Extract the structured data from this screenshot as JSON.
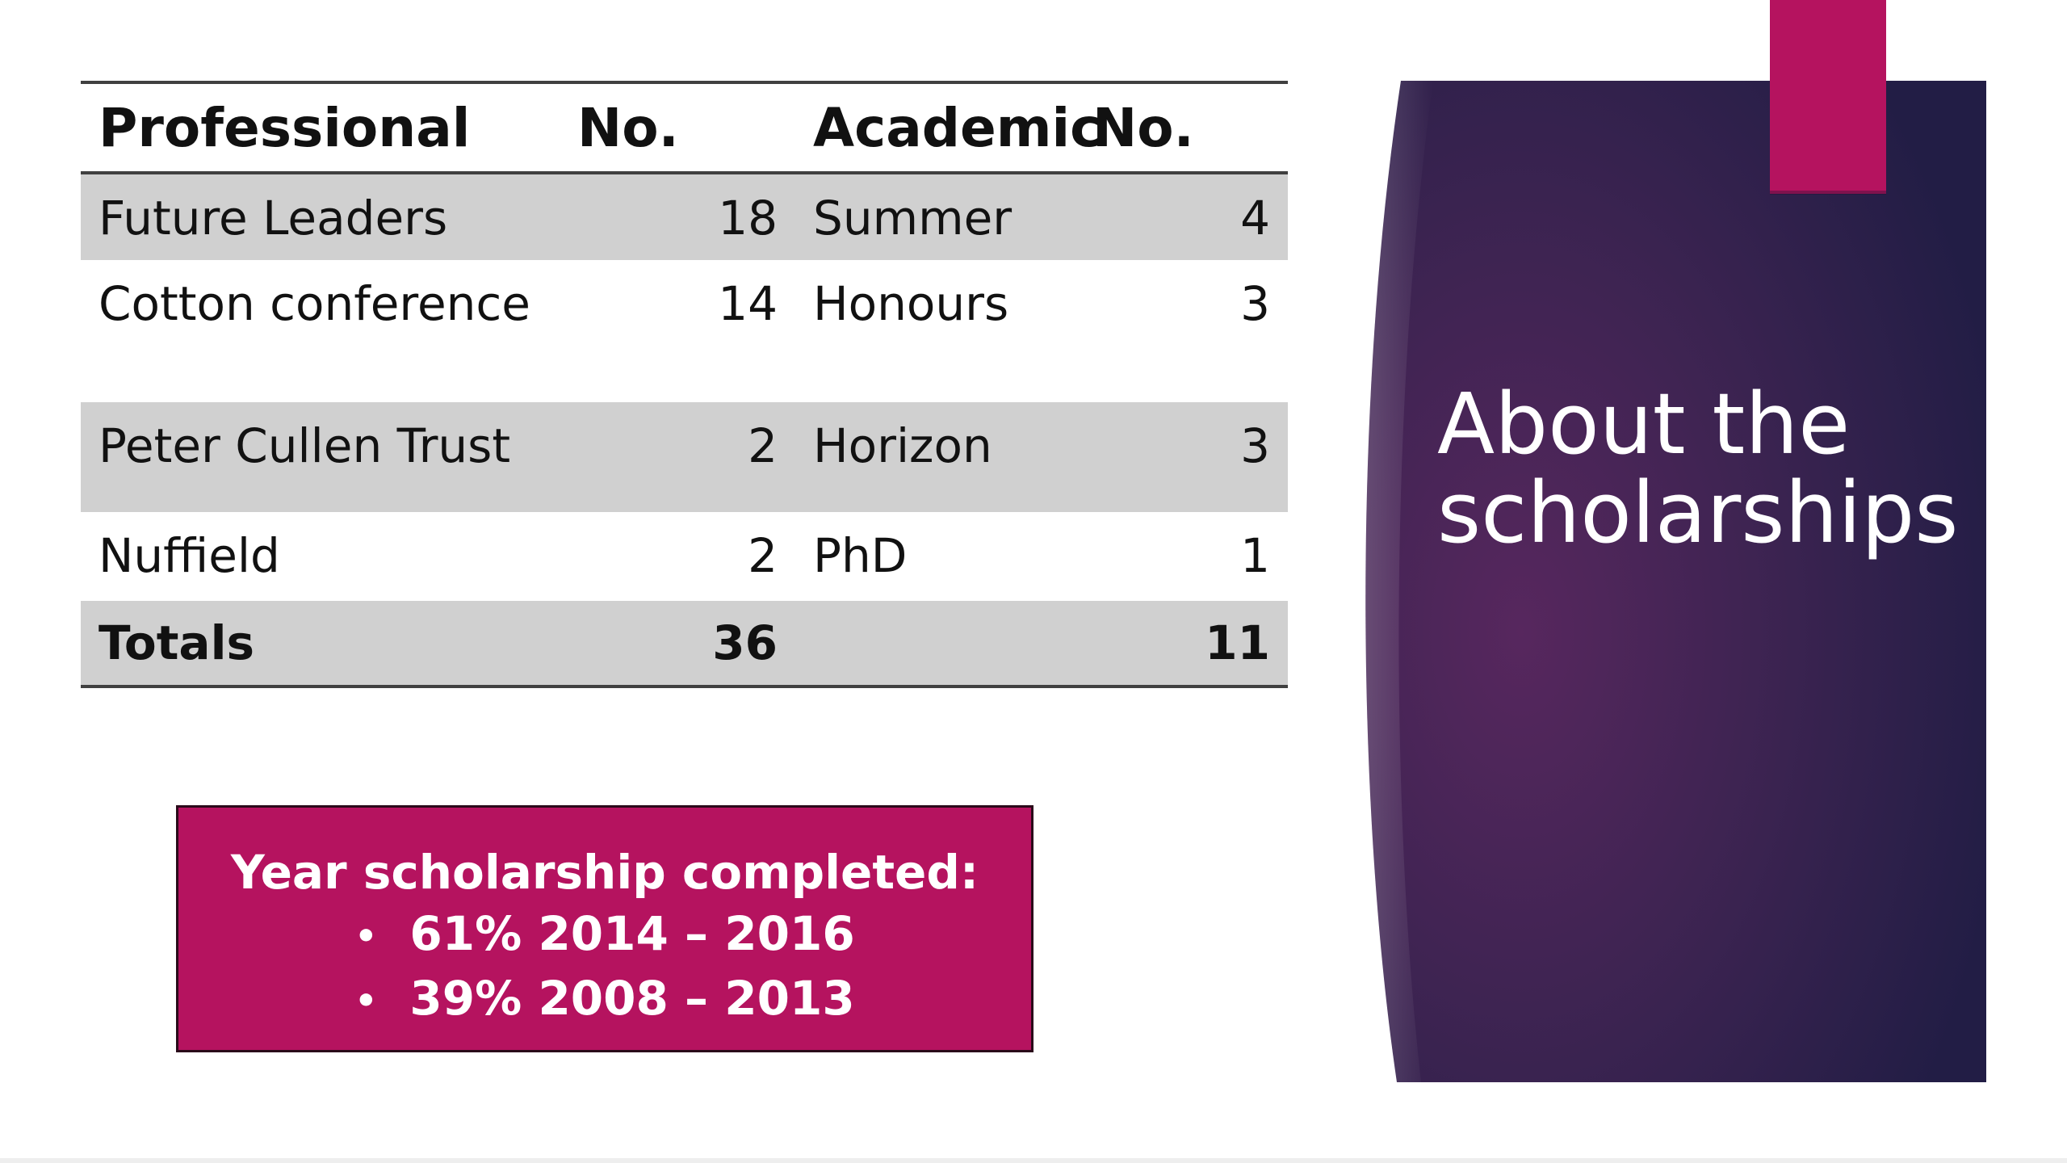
{
  "table": {
    "headers": [
      "Professional",
      "No.",
      "Academic",
      "No."
    ],
    "rows": [
      {
        "professional": "Future Leaders",
        "prof_no": "18",
        "academic": "Summer",
        "acad_no": "4"
      },
      {
        "professional": "Cotton conference",
        "prof_no": "14",
        "academic": "Honours",
        "acad_no": "3"
      },
      {
        "professional": "Peter Cullen Trust",
        "prof_no": "2",
        "academic": "Horizon",
        "acad_no": "3"
      },
      {
        "professional": "Nuffield",
        "prof_no": "2",
        "academic": "PhD",
        "acad_no": "1"
      }
    ],
    "totals": {
      "label": "Totals",
      "prof_no": "36",
      "academic": "",
      "acad_no": "11"
    }
  },
  "completed": {
    "heading": "Year scholarship completed:",
    "items": [
      "61% 2014 – 2016",
      "39% 2008 – 2013"
    ]
  },
  "panel": {
    "title": "About the scholarships"
  },
  "colors": {
    "accent_magenta": "#b5135f",
    "panel_purple": "#2c1f4e",
    "row_shade": "#d0d0d0"
  }
}
